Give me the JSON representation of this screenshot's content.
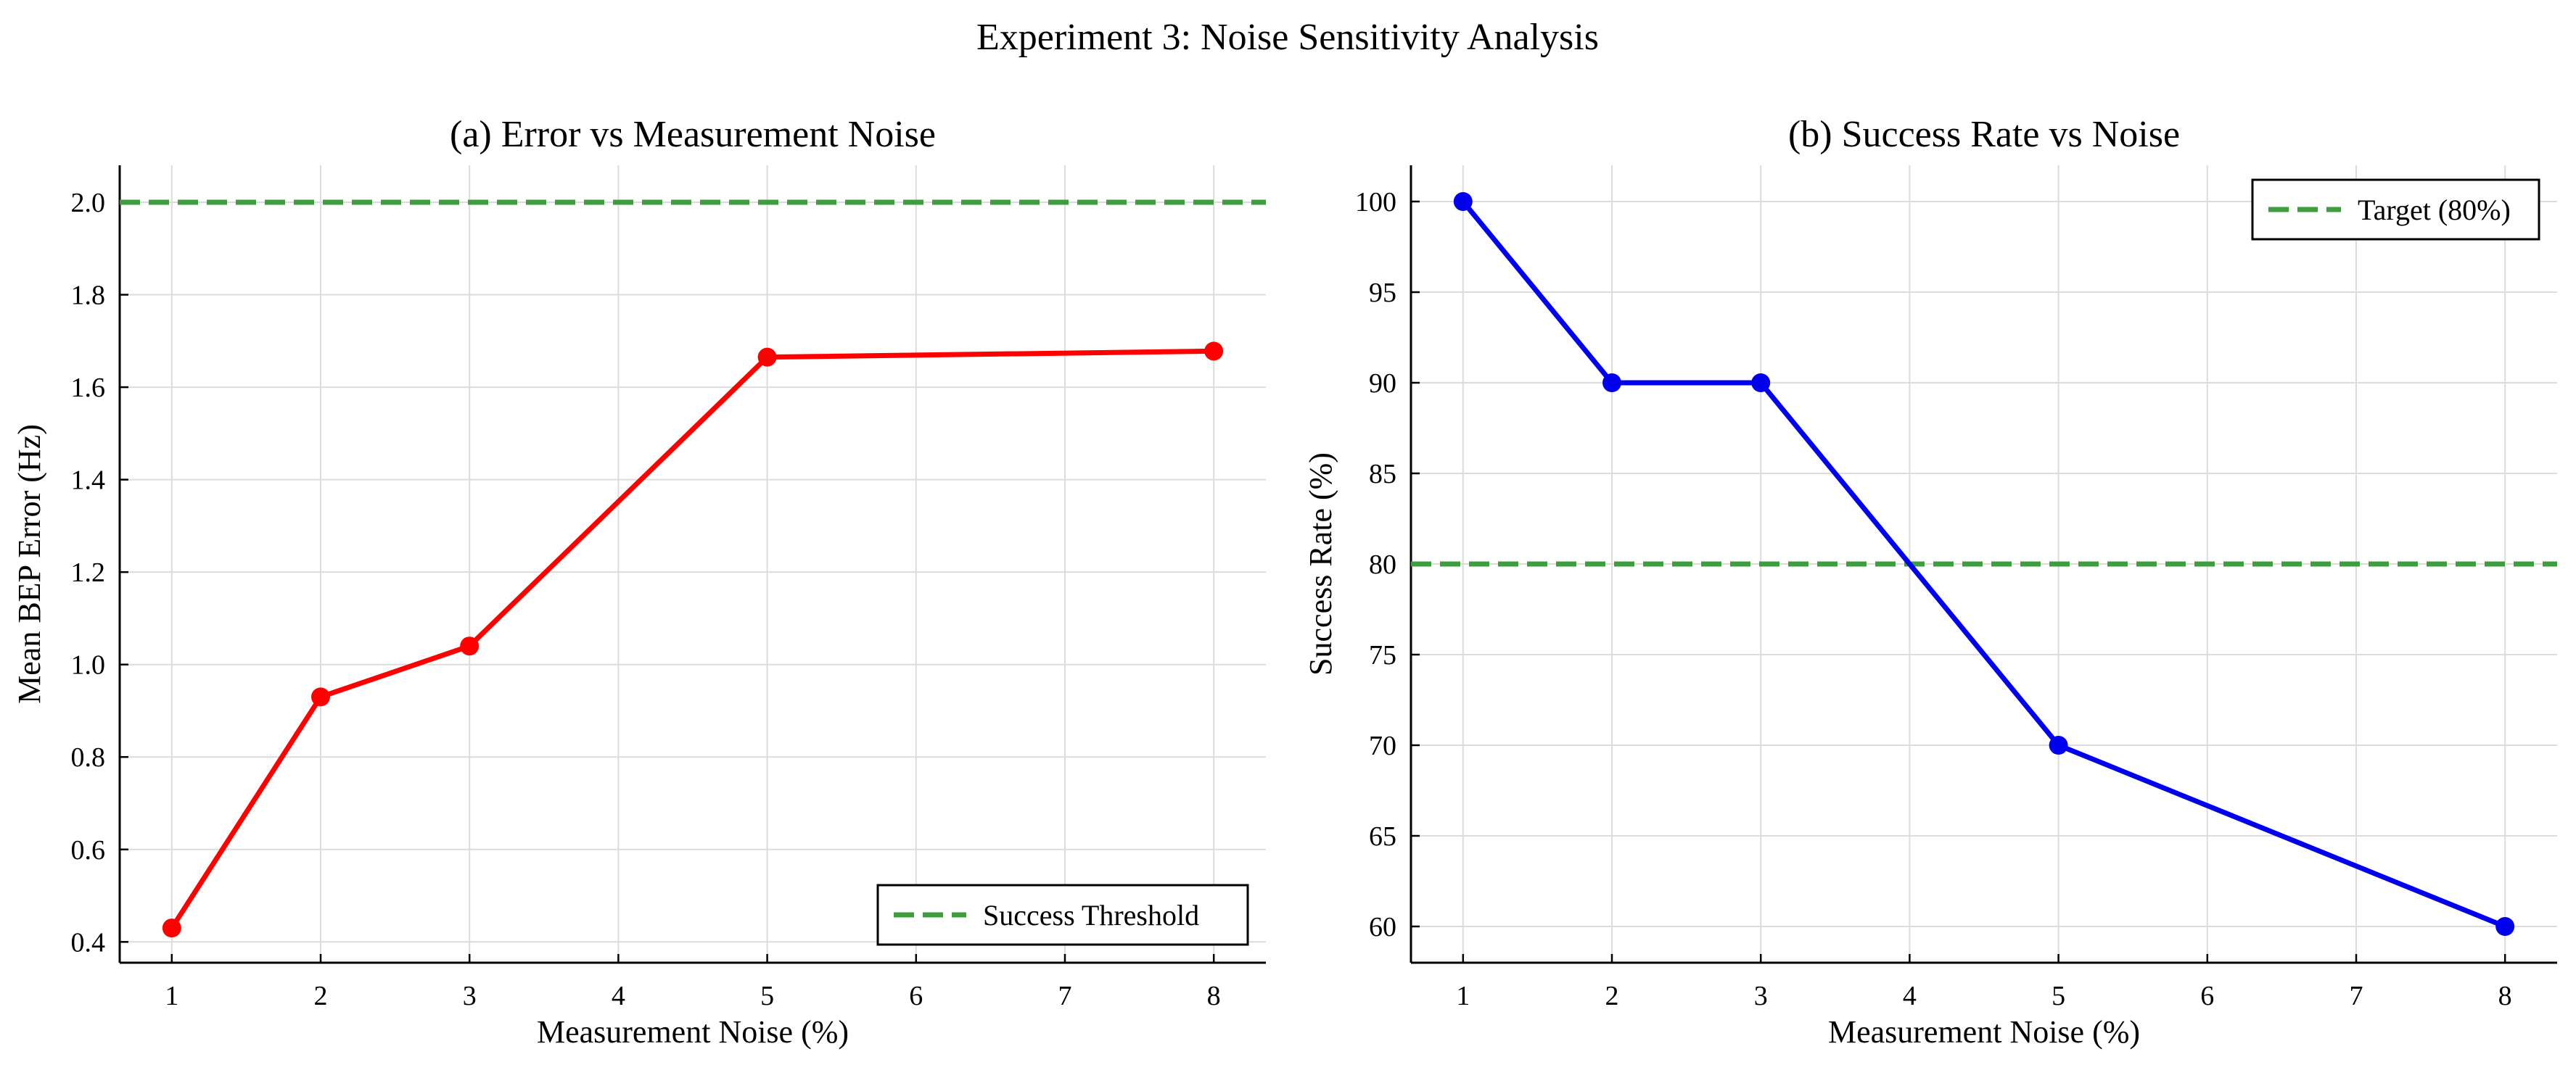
{
  "figure_title": "Experiment 3: Noise Sensitivity Analysis",
  "chart_data": [
    {
      "type": "line",
      "title": "(a) Error vs Measurement Noise",
      "xlabel": "Measurement Noise (%)",
      "ylabel": "Mean BEP Error (Hz)",
      "xlim": [
        0.65,
        8.35
      ],
      "ylim": [
        0.355,
        2.08
      ],
      "xticks": [
        1,
        2,
        3,
        4,
        5,
        6,
        7,
        8
      ],
      "yticks": [
        0.4,
        0.6,
        0.8,
        1.0,
        1.2,
        1.4,
        1.6,
        1.8,
        2.0
      ],
      "ytick_labels": [
        "0.4",
        "0.6",
        "0.8",
        "1.0",
        "1.2",
        "1.4",
        "1.6",
        "1.8",
        "2.0"
      ],
      "grid": true,
      "series": [
        {
          "color": "#ff0000",
          "marker": "circle",
          "x": [
            1,
            2,
            3,
            5,
            8
          ],
          "y": [
            0.43,
            0.93,
            1.04,
            1.665,
            1.678
          ]
        }
      ],
      "reference_lines": [
        {
          "name": "Success Threshold",
          "y": 2.0,
          "color": "#3d9e3d",
          "style": "dashed"
        }
      ],
      "legend": {
        "position": "bottom-right",
        "entries": [
          "Success Threshold"
        ]
      }
    },
    {
      "type": "line",
      "title": "(b) Success Rate vs Noise",
      "xlabel": "Measurement Noise (%)",
      "ylabel": "Success Rate (%)",
      "xlim": [
        0.65,
        8.35
      ],
      "ylim": [
        58,
        102
      ],
      "xticks": [
        1,
        2,
        3,
        4,
        5,
        6,
        7,
        8
      ],
      "yticks": [
        60,
        65,
        70,
        75,
        80,
        85,
        90,
        95,
        100
      ],
      "ytick_labels": [
        "60",
        "65",
        "70",
        "75",
        "80",
        "85",
        "90",
        "95",
        "100"
      ],
      "grid": true,
      "series": [
        {
          "color": "#0000ee",
          "marker": "circle",
          "x": [
            1,
            2,
            3,
            5,
            8
          ],
          "y": [
            100,
            90,
            90,
            70,
            60
          ]
        }
      ],
      "reference_lines": [
        {
          "name": "Target (80%)",
          "y": 80,
          "color": "#3d9e3d",
          "style": "dashed"
        }
      ],
      "legend": {
        "position": "top-right",
        "entries": [
          "Target (80%)"
        ]
      }
    }
  ]
}
